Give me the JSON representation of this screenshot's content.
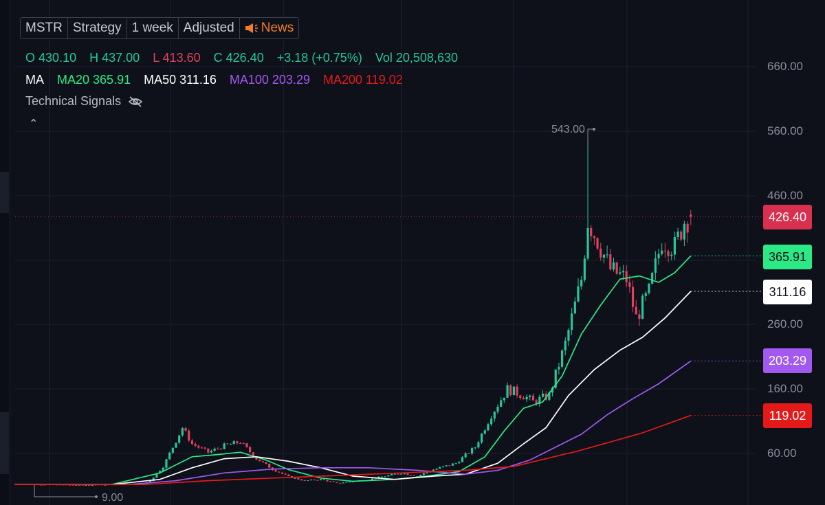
{
  "toolbar": {
    "symbol": "MSTR",
    "strategy": "Strategy",
    "interval": "1 week",
    "adjustment": "Adjusted",
    "news": "News"
  },
  "ohlc": {
    "o_label": "O",
    "o": "430.10",
    "h_label": "H",
    "h": "437.00",
    "l_label": "L",
    "l": "413.60",
    "c_label": "C",
    "c": "426.40",
    "change": "+3.18 (+0.75%)",
    "vol_label": "Vol",
    "vol": "20,508,630"
  },
  "ma_legend": {
    "label": "MA",
    "ma20": "MA20 365.91",
    "ma50": "MA50 311.16",
    "ma100": "MA100 203.29",
    "ma200": "MA200 119.02"
  },
  "signals": {
    "label": "Technical Signals"
  },
  "colors": {
    "up": "#26c59a",
    "down": "#e0415d",
    "ma20": "#2bea86",
    "ma50": "#ffffff",
    "ma100": "#a259f0",
    "ma200": "#e41a1a",
    "news": "#ef7d2b",
    "background": "#0e111a"
  },
  "chart_data": {
    "type": "candlestick",
    "symbol": "MSTR",
    "interval": "1 week",
    "ylim": [
      0,
      700
    ],
    "y_ticks": [
      "660.00",
      "560.00",
      "460.00",
      "260.00",
      "160.00",
      "60.00"
    ],
    "period_max": {
      "value": 543.0,
      "label": "543.00"
    },
    "period_min": {
      "value": 9.0,
      "label": "9.00"
    },
    "last_price": {
      "value": 426.4,
      "label": "426.40"
    },
    "price_anchors": [
      [
        0,
        13
      ],
      [
        20,
        11
      ],
      [
        40,
        13
      ],
      [
        42,
        18
      ],
      [
        46,
        40
      ],
      [
        50,
        80
      ],
      [
        52,
        100
      ],
      [
        55,
        75
      ],
      [
        60,
        62
      ],
      [
        65,
        72
      ],
      [
        70,
        78
      ],
      [
        75,
        52
      ],
      [
        80,
        36
      ],
      [
        85,
        24
      ],
      [
        90,
        18
      ],
      [
        95,
        20
      ],
      [
        100,
        14
      ],
      [
        110,
        20
      ],
      [
        120,
        30
      ],
      [
        125,
        25
      ],
      [
        130,
        35
      ],
      [
        137,
        45
      ],
      [
        143,
        70
      ],
      [
        148,
        120
      ],
      [
        153,
        160
      ],
      [
        158,
        150
      ],
      [
        161,
        140
      ],
      [
        166,
        150
      ],
      [
        171,
        230
      ],
      [
        176,
        330
      ],
      [
        178,
        420
      ],
      [
        181,
        390
      ],
      [
        185,
        345
      ],
      [
        190,
        330
      ],
      [
        193,
        270
      ],
      [
        197,
        310
      ],
      [
        201,
        390
      ],
      [
        205,
        380
      ],
      [
        208,
        420
      ],
      [
        210,
        426.4
      ]
    ],
    "moving_averages": [
      {
        "name": "MA20",
        "last": 365.91,
        "label": "365.91",
        "points": [
          [
            0,
            12
          ],
          [
            30,
            12
          ],
          [
            45,
            30
          ],
          [
            55,
            55
          ],
          [
            62,
            58
          ],
          [
            70,
            62
          ],
          [
            78,
            50
          ],
          [
            85,
            35
          ],
          [
            95,
            22
          ],
          [
            105,
            17
          ],
          [
            118,
            20
          ],
          [
            128,
            25
          ],
          [
            138,
            32
          ],
          [
            146,
            55
          ],
          [
            152,
            95
          ],
          [
            158,
            130
          ],
          [
            164,
            140
          ],
          [
            170,
            180
          ],
          [
            176,
            245
          ],
          [
            182,
            290
          ],
          [
            188,
            330
          ],
          [
            194,
            335
          ],
          [
            200,
            325
          ],
          [
            205,
            340
          ],
          [
            210,
            365.91
          ]
        ]
      },
      {
        "name": "MA50",
        "last": 311.16,
        "label": "311.16",
        "points": [
          [
            0,
            12
          ],
          [
            30,
            12
          ],
          [
            45,
            20
          ],
          [
            55,
            38
          ],
          [
            65,
            52
          ],
          [
            75,
            55
          ],
          [
            85,
            48
          ],
          [
            95,
            38
          ],
          [
            105,
            25
          ],
          [
            118,
            20
          ],
          [
            130,
            25
          ],
          [
            140,
            28
          ],
          [
            150,
            45
          ],
          [
            158,
            75
          ],
          [
            165,
            100
          ],
          [
            172,
            150
          ],
          [
            180,
            190
          ],
          [
            188,
            220
          ],
          [
            195,
            240
          ],
          [
            202,
            270
          ],
          [
            210,
            311.16
          ]
        ]
      },
      {
        "name": "MA100",
        "last": 203.29,
        "label": "203.29",
        "points": [
          [
            0,
            12
          ],
          [
            35,
            12
          ],
          [
            50,
            18
          ],
          [
            65,
            30
          ],
          [
            80,
            36
          ],
          [
            95,
            38
          ],
          [
            110,
            38
          ],
          [
            125,
            34
          ],
          [
            140,
            28
          ],
          [
            150,
            34
          ],
          [
            160,
            50
          ],
          [
            168,
            70
          ],
          [
            176,
            90
          ],
          [
            184,
            120
          ],
          [
            192,
            145
          ],
          [
            200,
            168
          ],
          [
            210,
            203.29
          ]
        ]
      },
      {
        "name": "MA200",
        "last": 119.02,
        "label": "119.02",
        "points": [
          [
            0,
            12
          ],
          [
            40,
            12
          ],
          [
            60,
            18
          ],
          [
            80,
            22
          ],
          [
            100,
            26
          ],
          [
            120,
            30
          ],
          [
            140,
            34
          ],
          [
            155,
            40
          ],
          [
            165,
            52
          ],
          [
            175,
            64
          ],
          [
            185,
            78
          ],
          [
            195,
            92
          ],
          [
            210,
            119.02
          ]
        ]
      }
    ]
  }
}
